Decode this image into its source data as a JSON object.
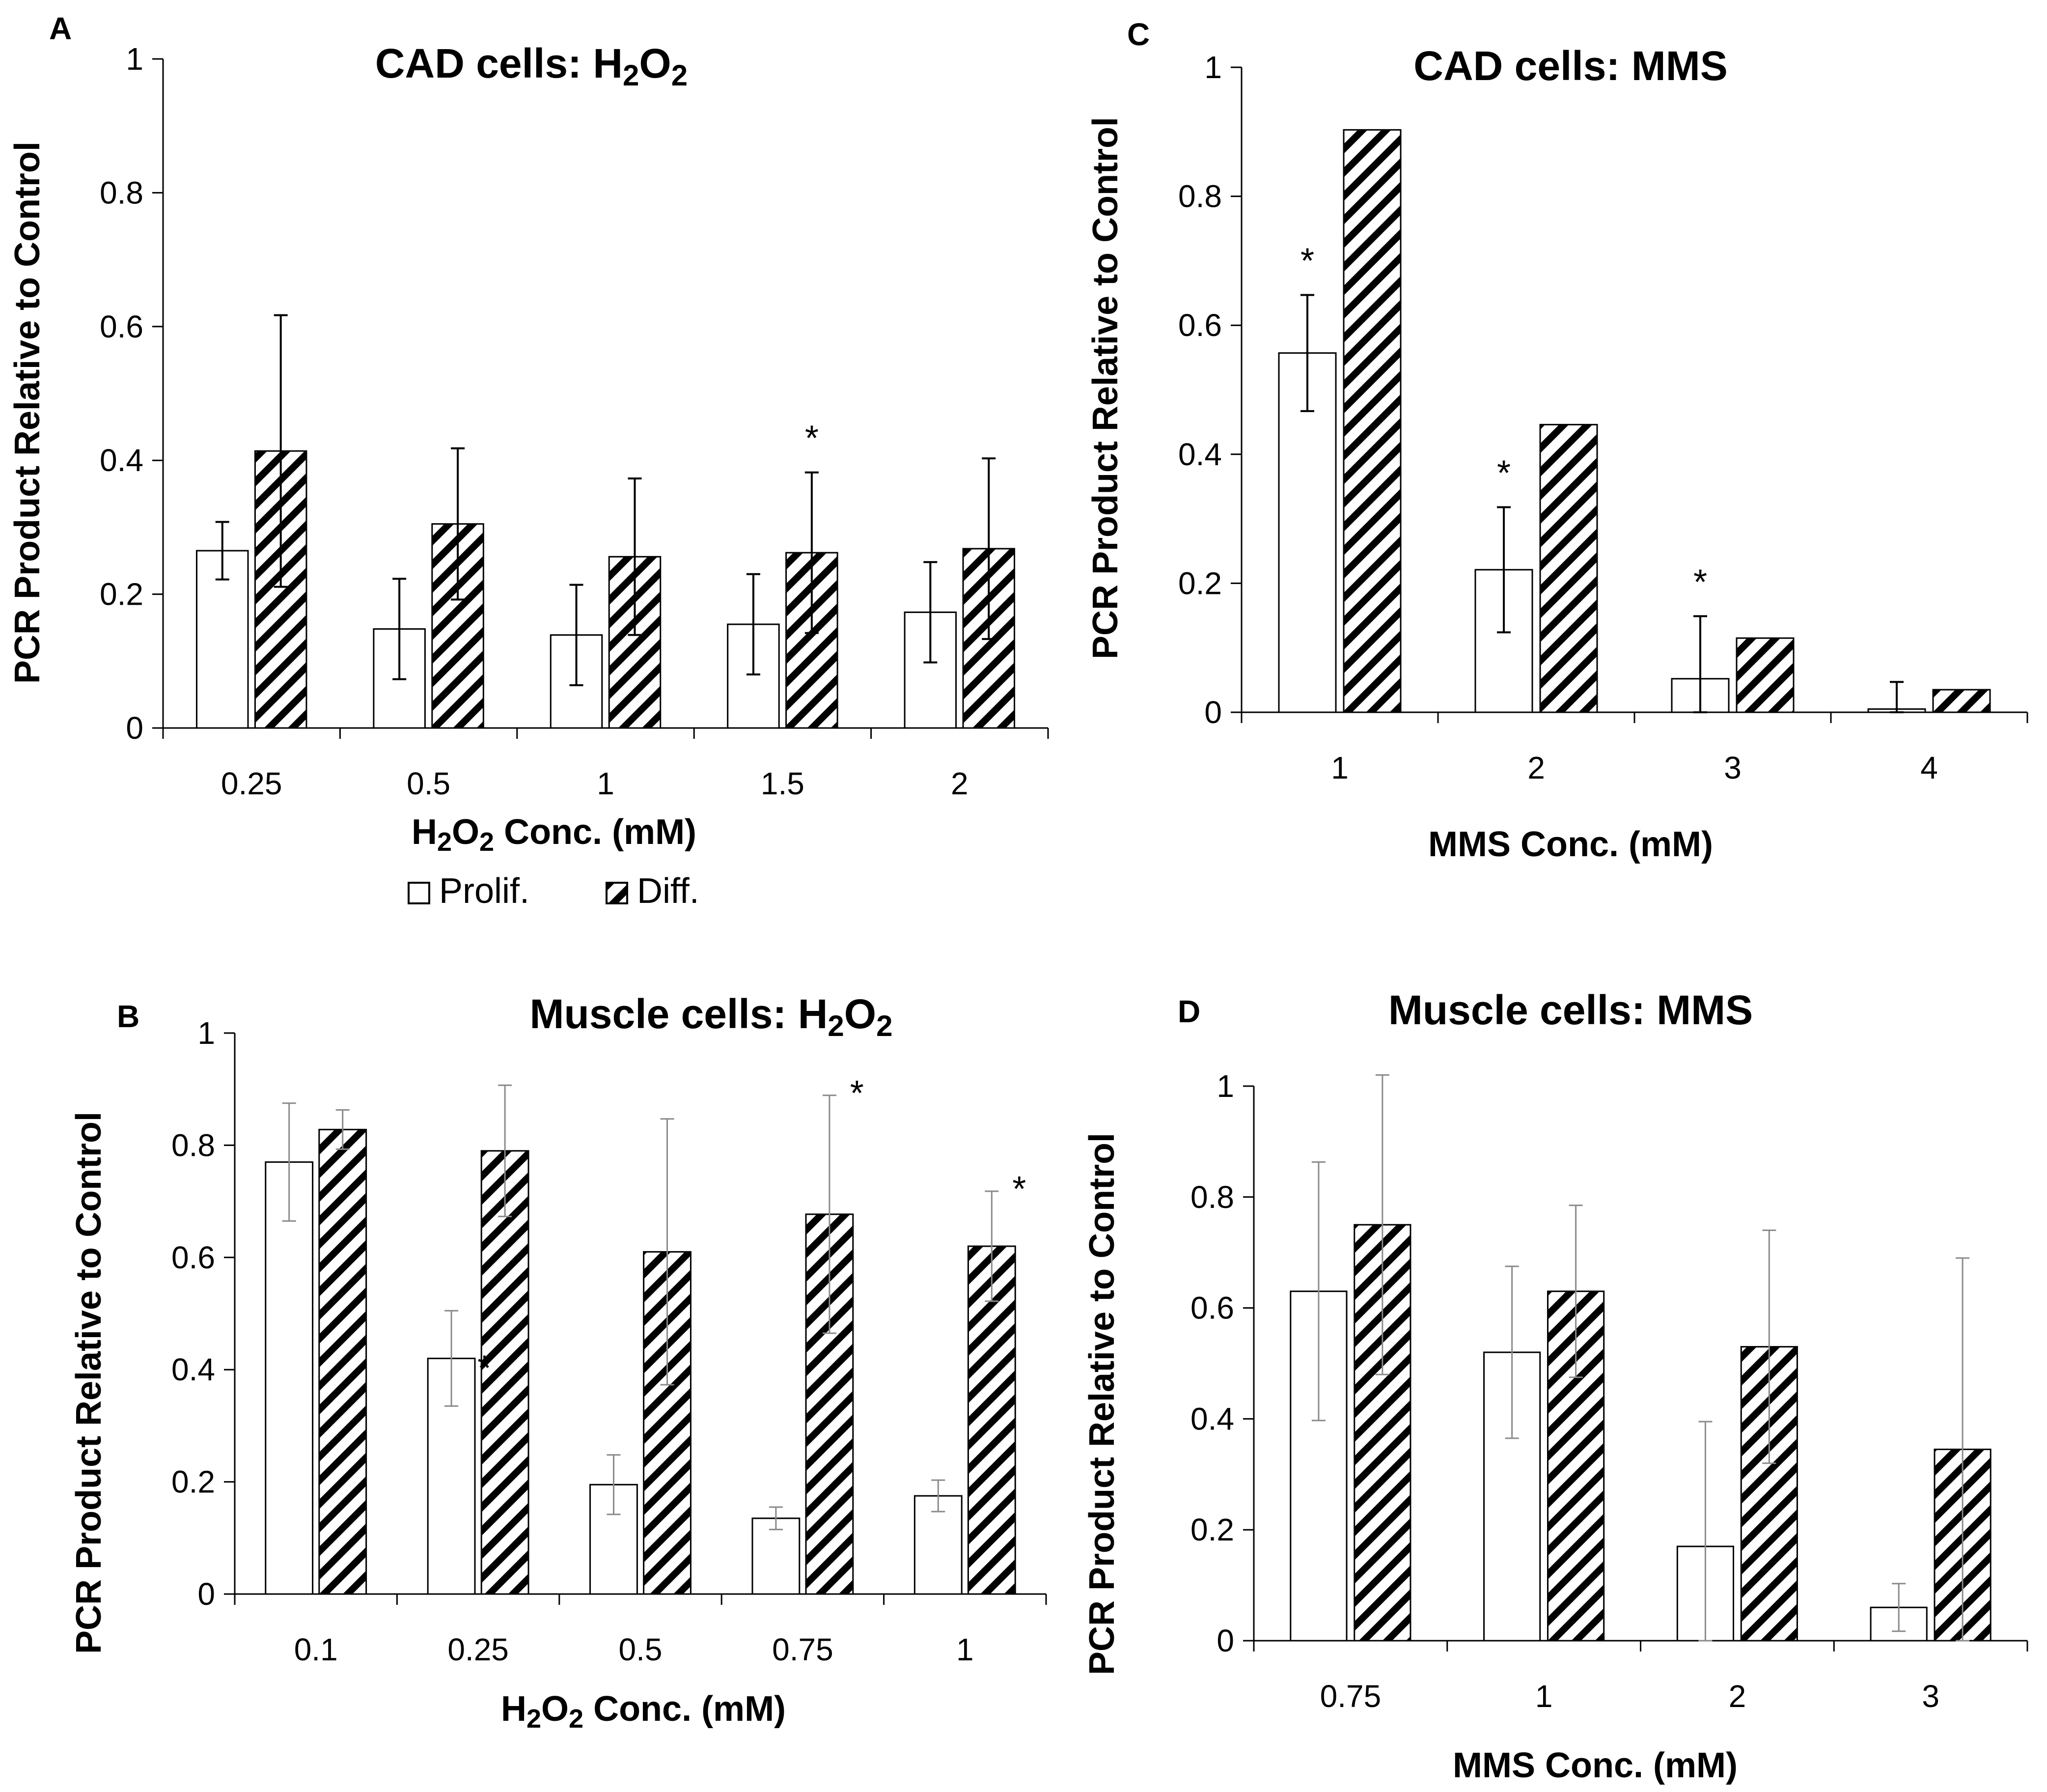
{
  "colors": {
    "prolif_fill": "#ffffff",
    "diff_hatch": "#000000",
    "axis": "#000000",
    "background": "#ffffff"
  },
  "legend": {
    "prolif_label": "Prolif.",
    "diff_label": "Diff."
  },
  "chart_data": [
    {
      "panel": "A",
      "type": "bar",
      "title": {
        "prefix": "CAD cells: H",
        "sub1": "2",
        "mid": "O",
        "sub2": "2",
        "suffix": ""
      },
      "xlabel": {
        "prefix": "H",
        "sub1": "2",
        "mid": "O",
        "sub2": "2",
        "suffix": " Conc. (mM)"
      },
      "ylabel": "PCR Product Relative to Control",
      "ylim": [
        0,
        1
      ],
      "yticks": [
        "0",
        "0.2",
        "0.4",
        "0.6",
        "0.8",
        "1"
      ],
      "categories": [
        "0.25",
        "0.5",
        "1",
        "1.5",
        "2"
      ],
      "series": [
        {
          "name": "Prolif.",
          "values": [
            0.265,
            0.148,
            0.139,
            0.155,
            0.173
          ],
          "errors": [
            0.043,
            0.075,
            0.075,
            0.075,
            0.075
          ]
        },
        {
          "name": "Diff.",
          "values": [
            0.414,
            0.305,
            0.256,
            0.262,
            0.268
          ],
          "errors": [
            0.203,
            0.113,
            0.117,
            0.12,
            0.135
          ]
        }
      ],
      "annotations": [
        {
          "category": "1.5",
          "series": "Diff.",
          "text": "*"
        }
      ]
    },
    {
      "panel": "B",
      "type": "bar",
      "title": {
        "prefix": "Muscle cells: H",
        "sub1": "2",
        "mid": "O",
        "sub2": "2",
        "suffix": ""
      },
      "xlabel": {
        "prefix": "H",
        "sub1": "2",
        "mid": "O",
        "sub2": "2",
        "suffix": " Conc. (mM)"
      },
      "ylabel": "PCR Product Relative to Control",
      "ylim": [
        0,
        1
      ],
      "yticks": [
        "0",
        "0.2",
        "0.4",
        "0.6",
        "0.8",
        "1"
      ],
      "categories": [
        "0.1",
        "0.25",
        "0.5",
        "0.75",
        "1"
      ],
      "series": [
        {
          "name": "Prolif.",
          "values": [
            0.77,
            0.42,
            0.195,
            0.135,
            0.175
          ],
          "errors": [
            0.105,
            0.085,
            0.053,
            0.02,
            0.028
          ]
        },
        {
          "name": "Diff.",
          "values": [
            0.828,
            0.79,
            0.61,
            0.677,
            0.62
          ],
          "errors": [
            0.035,
            0.117,
            0.237,
            0.212,
            0.098
          ]
        }
      ],
      "annotations": [
        {
          "category": "0.25",
          "series": "Diff.",
          "text": "*"
        },
        {
          "category": "0.75",
          "series": "Diff.",
          "text": "*"
        },
        {
          "category": "1",
          "series": "Diff.",
          "text": "*"
        }
      ]
    },
    {
      "panel": "C",
      "type": "bar",
      "title": {
        "prefix": "CAD cells: MMS",
        "sub1": "",
        "mid": "",
        "sub2": "",
        "suffix": ""
      },
      "xlabel": {
        "prefix": "MMS Conc. (mM)",
        "sub1": "",
        "mid": "",
        "sub2": "",
        "suffix": ""
      },
      "ylabel": "PCR Product Relative to Control",
      "ylim": [
        0,
        1
      ],
      "yticks": [
        "0",
        "0.2",
        "0.4",
        "0.6",
        "0.8",
        "1"
      ],
      "categories": [
        "1",
        "2",
        "3",
        "4"
      ],
      "series": [
        {
          "name": "Prolif.",
          "values": [
            0.557,
            0.221,
            0.052,
            0.005
          ],
          "errors": [
            0.09,
            0.097,
            0.097,
            0.042
          ]
        },
        {
          "name": "Diff.",
          "values": [
            0.903,
            0.446,
            0.115,
            0.035
          ],
          "errors": [
            0,
            0,
            0,
            0
          ]
        }
      ],
      "annotations": [
        {
          "category": "1",
          "series": "Prolif.",
          "text": "*"
        },
        {
          "category": "2",
          "series": "Prolif.",
          "text": "*"
        },
        {
          "category": "3",
          "series": "Prolif.",
          "text": "*"
        }
      ]
    },
    {
      "panel": "D",
      "type": "bar",
      "title": {
        "prefix": "Muscle cells: MMS",
        "sub1": "",
        "mid": "",
        "sub2": "",
        "suffix": ""
      },
      "xlabel": {
        "prefix": "MMS Conc. (mM)",
        "sub1": "",
        "mid": "",
        "sub2": "",
        "suffix": ""
      },
      "ylabel": "PCR Product Relative to Control",
      "ylim": [
        0,
        1
      ],
      "yticks": [
        "0",
        "0.2",
        "0.4",
        "0.6",
        "0.8",
        "1"
      ],
      "categories": [
        "0.75",
        "1",
        "2",
        "3"
      ],
      "series": [
        {
          "name": "Prolif.",
          "values": [
            0.63,
            0.52,
            0.17,
            0.06
          ],
          "errors": [
            0.233,
            0.155,
            0.225,
            0.043
          ]
        },
        {
          "name": "Diff.",
          "values": [
            0.75,
            0.63,
            0.53,
            0.345
          ],
          "errors": [
            0.27,
            0.155,
            0.21,
            0.345
          ]
        }
      ],
      "annotations": []
    }
  ]
}
